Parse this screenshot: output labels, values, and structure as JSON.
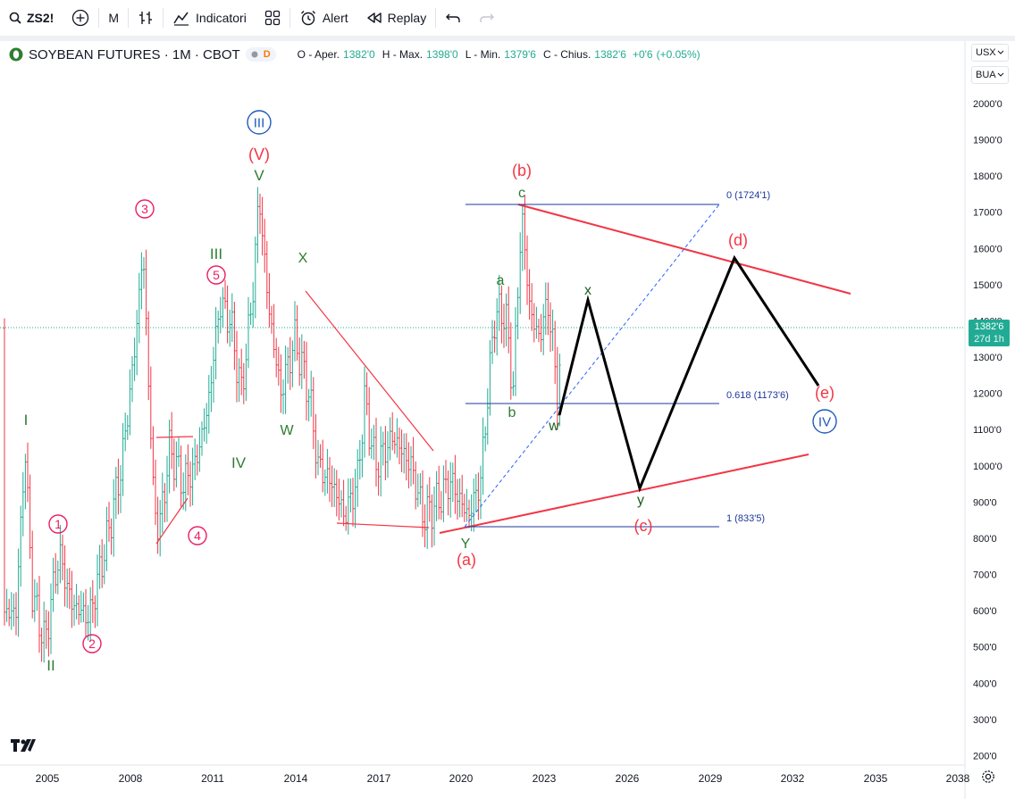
{
  "toolbar": {
    "symbol": "ZS2!",
    "interval": "M",
    "indicators_label": "Indicatori",
    "alert_label": "Alert",
    "replay_label": "Replay"
  },
  "legend": {
    "title": "SOYBEAN FUTURES · 1M · CBOT",
    "badge": "D",
    "open_label": "O - Aper.",
    "open": "1382'0",
    "high_label": "H - Max.",
    "high": "1398'0",
    "low_label": "L - Min.",
    "low": "1379'6",
    "close_label": "C - Chius.",
    "close": "1382'6",
    "change": "+0'6",
    "change_pct": "(+0.05%)"
  },
  "currency": {
    "unit": "USX",
    "type": "BUA"
  },
  "price_tag": {
    "price": "1382'6",
    "countdown": "27d 1h"
  },
  "y_axis": {
    "labels": [
      "2000'0",
      "1900'0",
      "1800'0",
      "1700'0",
      "1600'0",
      "1500'0",
      "1400'0",
      "1300'0",
      "1200'0",
      "1100'0",
      "1000'0",
      "900'0",
      "800'0",
      "700'0",
      "600'0",
      "500'0",
      "400'0",
      "300'0",
      "200'0"
    ]
  },
  "x_axis": {
    "labels": [
      "2005",
      "2008",
      "2011",
      "2014",
      "2017",
      "2020",
      "2023",
      "2026",
      "2029",
      "2032",
      "2035",
      "2038"
    ]
  },
  "fib": {
    "level_0": "0 (1724'1)",
    "level_618": "0.618 (1173'6)",
    "level_1": "1 (833'5)"
  },
  "waves": {
    "circled_1": "1",
    "circled_2": "2",
    "circled_3": "3",
    "circled_4": "4",
    "circled_5": "5",
    "roman_I": "I",
    "roman_II": "II",
    "roman_III": "III",
    "roman_IV": "IV",
    "roman_V": "V",
    "circled_III": "III",
    "circled_IV": "IV",
    "red_V": "(V)",
    "red_a": "(a)",
    "red_b": "(b)",
    "red_c": "(c)",
    "red_d": "(d)",
    "red_e": "(e)",
    "X": "X",
    "W": "W",
    "Y": "Y",
    "a": "a",
    "b": "b",
    "c": "c",
    "w": "w",
    "x": "x",
    "y": "y"
  },
  "colors": {
    "up": "#22ab94",
    "down": "#f23645",
    "red_line": "#f23645",
    "fib": "#1e3799",
    "wave_green": "#2e7d32",
    "wave_pink": "#e91e63",
    "wave_blue": "#1e5ab8",
    "path": "#000000"
  }
}
